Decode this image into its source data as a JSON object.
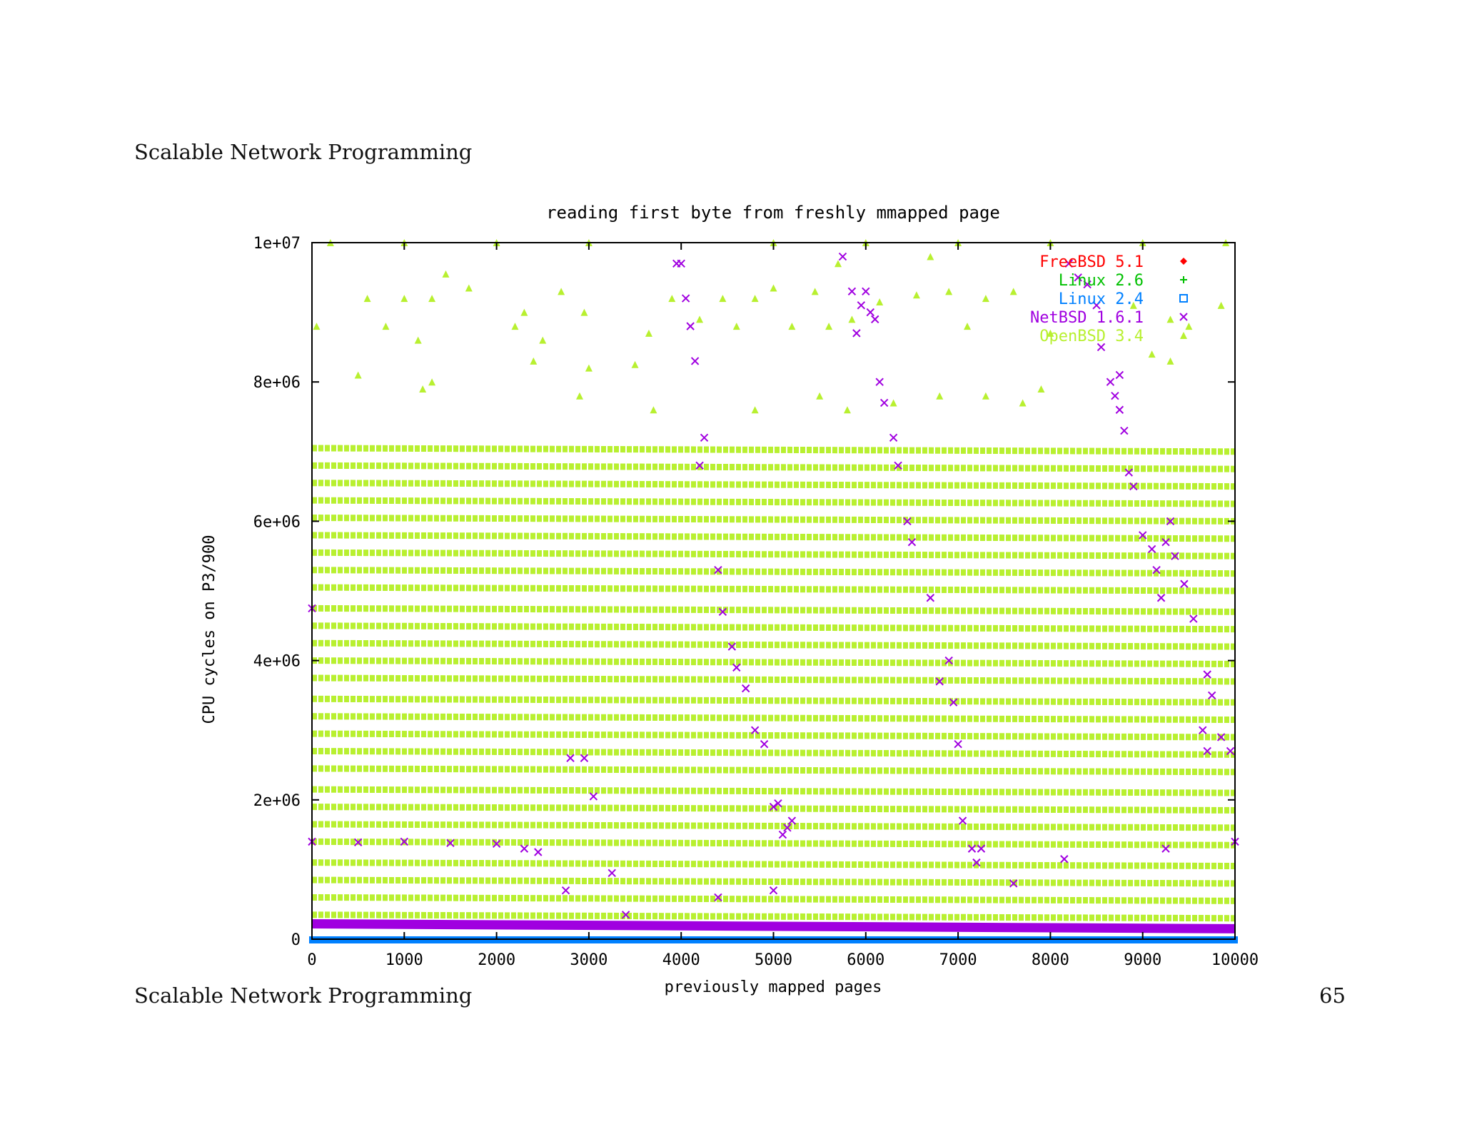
{
  "slide": {
    "header_title": "Scalable Network Programming",
    "footer_title": "Scalable Network Programming",
    "page_number": "65"
  },
  "chart_data": {
    "type": "scatter",
    "title": "reading first byte from freshly mmapped page",
    "xlabel": "previously mapped pages",
    "ylabel": "CPU cycles on P3/900",
    "xlim": [
      0,
      10000
    ],
    "ylim": [
      0,
      10000000
    ],
    "x_ticks": [
      {
        "value": 0,
        "label": "0"
      },
      {
        "value": 1000,
        "label": "1000"
      },
      {
        "value": 2000,
        "label": "2000"
      },
      {
        "value": 3000,
        "label": "3000"
      },
      {
        "value": 4000,
        "label": "4000"
      },
      {
        "value": 5000,
        "label": "5000"
      },
      {
        "value": 6000,
        "label": "6000"
      },
      {
        "value": 7000,
        "label": "7000"
      },
      {
        "value": 8000,
        "label": "8000"
      },
      {
        "value": 9000,
        "label": "9000"
      },
      {
        "value": 10000,
        "label": "10000"
      }
    ],
    "y_ticks": [
      {
        "value": 0,
        "label": "0"
      },
      {
        "value": 2000000,
        "label": "2e+06"
      },
      {
        "value": 4000000,
        "label": "4e+06"
      },
      {
        "value": 6000000,
        "label": "6e+06"
      },
      {
        "value": 8000000,
        "label": "8e+06"
      },
      {
        "value": 10000000,
        "label": "1e+07"
      }
    ],
    "legend_position": "top-right",
    "series": [
      {
        "name": "FreeBSD 5.1",
        "color": "#ff0000",
        "marker": "diamond",
        "points": []
      },
      {
        "name": "Linux 2.6",
        "color": "#00c000",
        "marker": "plus",
        "points": []
      },
      {
        "name": "Linux 2.4",
        "color": "#0080ff",
        "marker": "square",
        "points": [
          [
            0,
            0
          ],
          [
            2500,
            0
          ],
          [
            5000,
            0
          ],
          [
            7500,
            0
          ],
          [
            10000,
            0
          ]
        ]
      },
      {
        "name": "NetBSD 1.6.1",
        "color": "#a000e0",
        "marker": "cross",
        "points": [
          [
            0,
            4750000
          ],
          [
            0,
            1400000
          ],
          [
            500,
            1390000
          ],
          [
            1000,
            1400000
          ],
          [
            1500,
            1380000
          ],
          [
            2000,
            1370000
          ],
          [
            2300,
            1300000
          ],
          [
            2450,
            1250000
          ],
          [
            4000,
            9700000
          ],
          [
            3950,
            9700000
          ],
          [
            4050,
            9200000
          ],
          [
            4100,
            8800000
          ],
          [
            4150,
            8300000
          ],
          [
            4250,
            7200000
          ],
          [
            4200,
            6800000
          ],
          [
            4400,
            5300000
          ],
          [
            4450,
            4700000
          ],
          [
            4550,
            4200000
          ],
          [
            4600,
            3900000
          ],
          [
            4700,
            3600000
          ],
          [
            4800,
            3000000
          ],
          [
            4900,
            2800000
          ],
          [
            5000,
            1900000
          ],
          [
            5050,
            1950000
          ],
          [
            5100,
            1500000
          ],
          [
            5150,
            1600000
          ],
          [
            5200,
            1700000
          ],
          [
            4400,
            600000
          ],
          [
            2750,
            700000
          ],
          [
            2800,
            2600000
          ],
          [
            2950,
            2600000
          ],
          [
            3050,
            2050000
          ],
          [
            3250,
            950000
          ],
          [
            3400,
            350000
          ],
          [
            5750,
            9800000
          ],
          [
            5850,
            9300000
          ],
          [
            5950,
            9100000
          ],
          [
            6000,
            9300000
          ],
          [
            6050,
            9000000
          ],
          [
            6100,
            8900000
          ],
          [
            5900,
            8700000
          ],
          [
            6150,
            8000000
          ],
          [
            6200,
            7700000
          ],
          [
            6300,
            7200000
          ],
          [
            6350,
            6800000
          ],
          [
            6450,
            6000000
          ],
          [
            6500,
            5700000
          ],
          [
            6700,
            4900000
          ],
          [
            6900,
            4000000
          ],
          [
            6800,
            3700000
          ],
          [
            6950,
            3400000
          ],
          [
            7000,
            2800000
          ],
          [
            7050,
            1700000
          ],
          [
            7150,
            1300000
          ],
          [
            7250,
            1300000
          ],
          [
            7200,
            1100000
          ],
          [
            7600,
            800000
          ],
          [
            8200,
            9700000
          ],
          [
            8300,
            9500000
          ],
          [
            8400,
            9400000
          ],
          [
            8500,
            9100000
          ],
          [
            8550,
            8500000
          ],
          [
            8650,
            8000000
          ],
          [
            8750,
            8100000
          ],
          [
            8700,
            7800000
          ],
          [
            8750,
            7600000
          ],
          [
            8800,
            7300000
          ],
          [
            8850,
            6700000
          ],
          [
            8900,
            6500000
          ],
          [
            9000,
            5800000
          ],
          [
            9100,
            5600000
          ],
          [
            9150,
            5300000
          ],
          [
            9200,
            4900000
          ],
          [
            9250,
            5700000
          ],
          [
            9300,
            6000000
          ],
          [
            9350,
            5500000
          ],
          [
            9450,
            5100000
          ],
          [
            9550,
            4600000
          ],
          [
            9700,
            3800000
          ],
          [
            9750,
            3500000
          ],
          [
            9650,
            3000000
          ],
          [
            9700,
            2700000
          ],
          [
            9850,
            2900000
          ],
          [
            9950,
            2700000
          ],
          [
            10000,
            1400000
          ],
          [
            9250,
            1300000
          ],
          [
            8150,
            1150000
          ],
          [
            5000,
            700000
          ]
        ]
      },
      {
        "name": "OpenBSD 3.4",
        "color": "#b8f030",
        "marker": "triangle",
        "points": [
          [
            200,
            10000000
          ],
          [
            1000,
            10000000
          ],
          [
            2000,
            10000000
          ],
          [
            3000,
            10000000
          ],
          [
            5000,
            10000000
          ],
          [
            6000,
            10000000
          ],
          [
            7000,
            10000000
          ],
          [
            8000,
            10000000
          ],
          [
            9000,
            10000000
          ],
          [
            9900,
            10000000
          ],
          [
            50,
            8800000
          ],
          [
            600,
            9200000
          ],
          [
            800,
            8800000
          ],
          [
            1000,
            9200000
          ],
          [
            1150,
            8600000
          ],
          [
            1300,
            9200000
          ],
          [
            1450,
            9550000
          ],
          [
            1700,
            9350000
          ],
          [
            500,
            8100000
          ],
          [
            1200,
            7900000
          ],
          [
            1300,
            8000000
          ],
          [
            2200,
            8800000
          ],
          [
            2300,
            9000000
          ],
          [
            2500,
            8600000
          ],
          [
            2700,
            9300000
          ],
          [
            2950,
            9000000
          ],
          [
            2400,
            8300000
          ],
          [
            3000,
            8200000
          ],
          [
            3500,
            8250000
          ],
          [
            3650,
            8700000
          ],
          [
            3900,
            9200000
          ],
          [
            4200,
            8900000
          ],
          [
            4450,
            9200000
          ],
          [
            4600,
            8800000
          ],
          [
            4800,
            9200000
          ],
          [
            5000,
            9350000
          ],
          [
            5200,
            8800000
          ],
          [
            5450,
            9300000
          ],
          [
            5600,
            8800000
          ],
          [
            5700,
            9700000
          ],
          [
            5850,
            8900000
          ],
          [
            6150,
            9150000
          ],
          [
            6550,
            9250000
          ],
          [
            6700,
            9800000
          ],
          [
            6900,
            9300000
          ],
          [
            7100,
            8800000
          ],
          [
            7300,
            9200000
          ],
          [
            7600,
            9300000
          ],
          [
            8000,
            8700000
          ],
          [
            8900,
            9100000
          ],
          [
            9300,
            8900000
          ],
          [
            9500,
            8800000
          ],
          [
            9850,
            9100000
          ],
          [
            9300,
            8300000
          ],
          [
            9100,
            8400000
          ],
          [
            5500,
            7800000
          ],
          [
            5800,
            7600000
          ],
          [
            6300,
            7700000
          ],
          [
            6800,
            7800000
          ],
          [
            7300,
            7800000
          ],
          [
            7700,
            7700000
          ],
          [
            7900,
            7900000
          ],
          [
            3700,
            7600000
          ],
          [
            4800,
            7600000
          ],
          [
            2900,
            7800000
          ]
        ],
        "bands": [
          [
            7050000,
            7000000
          ],
          [
            6800000,
            6750000
          ],
          [
            6550000,
            6500000
          ],
          [
            6300000,
            6250000
          ],
          [
            6050000,
            6000000
          ],
          [
            5800000,
            5750000
          ],
          [
            5550000,
            5500000
          ],
          [
            5300000,
            5250000
          ],
          [
            5050000,
            5000000
          ],
          [
            4750000,
            4700000
          ],
          [
            4500000,
            4450000
          ],
          [
            4250000,
            4200000
          ],
          [
            4000000,
            3950000
          ],
          [
            3750000,
            3700000
          ],
          [
            3450000,
            3400000
          ],
          [
            3200000,
            3150000
          ],
          [
            2950000,
            2900000
          ],
          [
            2700000,
            2650000
          ],
          [
            2450000,
            2400000
          ],
          [
            2150000,
            2100000
          ],
          [
            1900000,
            1850000
          ],
          [
            1650000,
            1600000
          ],
          [
            1400000,
            1350000
          ],
          [
            1100000,
            1050000
          ],
          [
            850000,
            800000
          ],
          [
            600000,
            550000
          ],
          [
            350000,
            300000
          ]
        ]
      }
    ],
    "netbsd_floor": {
      "from": [
        0,
        220000
      ],
      "to": [
        10000,
        150000
      ]
    }
  }
}
